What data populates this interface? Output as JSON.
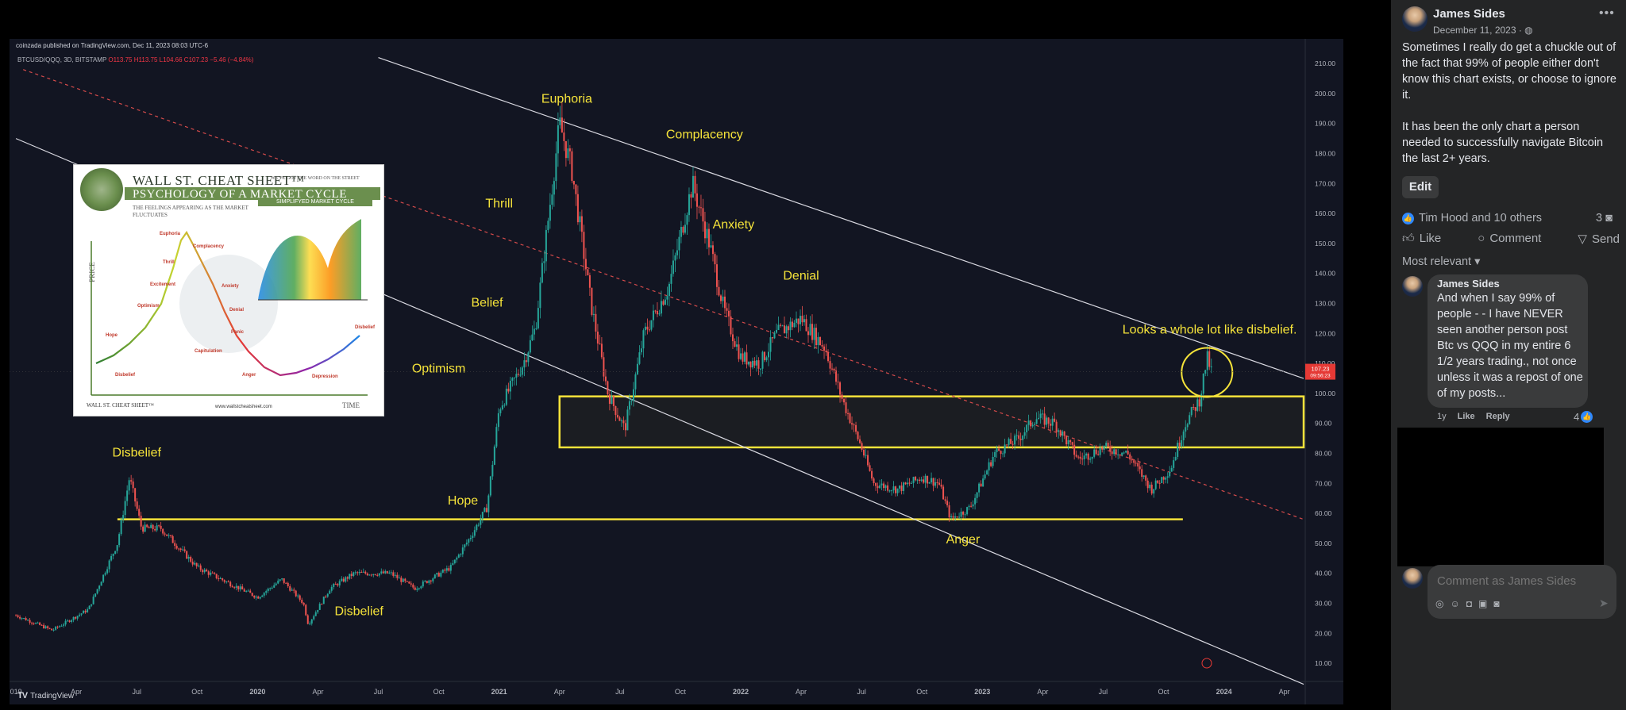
{
  "chart_window": {
    "published_line": "coinzada published on TradingView.com, Dec 11, 2023 08:03 UTC-6",
    "symbol": "BTCUSD/QQQ, 3D, BITSTAMP",
    "ohlc": {
      "open": "O113.75",
      "high": "H113.75",
      "low": "L104.66",
      "close": "C107.23",
      "change": "−5.46 (−4.84%)"
    },
    "price_tag": "107.23",
    "price_tag_time": "09:56:23",
    "footer_brand": "TradingView"
  },
  "chart_data": {
    "type": "candlestick",
    "y_ticks": [
      "210.00",
      "200.00",
      "190.00",
      "180.00",
      "170.00",
      "160.00",
      "150.00",
      "140.00",
      "130.00",
      "120.00",
      "110.00",
      "100.00",
      "90.00",
      "80.00",
      "70.00",
      "60.00",
      "50.00",
      "40.00",
      "30.00",
      "20.00",
      "10.00"
    ],
    "ylim": [
      5,
      214
    ],
    "x_ticks": [
      "019",
      "Apr",
      "Jul",
      "Oct",
      "2020",
      "Apr",
      "Jul",
      "Oct",
      "2021",
      "Apr",
      "Jul",
      "Oct",
      "2022",
      "Apr",
      "Jul",
      "Oct",
      "2023",
      "Apr",
      "Jul",
      "Oct",
      "2024",
      "Apr"
    ],
    "x_tick_years": [
      2019.0,
      2019.25,
      2019.5,
      2019.75,
      2020.0,
      2020.25,
      2020.5,
      2020.75,
      2021.0,
      2021.25,
      2021.5,
      2021.75,
      2022.0,
      2022.25,
      2022.5,
      2022.75,
      2023.0,
      2023.25,
      2023.5,
      2023.75,
      2024.0,
      2024.25
    ],
    "xlim": [
      2018.98,
      2024.33
    ],
    "price_path": [
      [
        2019.0,
        26
      ],
      [
        2019.15,
        21
      ],
      [
        2019.3,
        28
      ],
      [
        2019.42,
        50
      ],
      [
        2019.47,
        72
      ],
      [
        2019.52,
        55
      ],
      [
        2019.6,
        55
      ],
      [
        2019.75,
        42
      ],
      [
        2019.9,
        36
      ],
      [
        2020.0,
        32
      ],
      [
        2020.1,
        38
      ],
      [
        2020.19,
        30
      ],
      [
        2020.21,
        23
      ],
      [
        2020.3,
        35
      ],
      [
        2020.4,
        40
      ],
      [
        2020.55,
        40
      ],
      [
        2020.65,
        35
      ],
      [
        2020.8,
        42
      ],
      [
        2020.88,
        52
      ],
      [
        2020.95,
        62
      ],
      [
        2021.0,
        95
      ],
      [
        2021.1,
        110
      ],
      [
        2021.15,
        122
      ],
      [
        2021.25,
        190
      ],
      [
        2021.3,
        175
      ],
      [
        2021.38,
        130
      ],
      [
        2021.45,
        100
      ],
      [
        2021.52,
        88
      ],
      [
        2021.6,
        120
      ],
      [
        2021.7,
        135
      ],
      [
        2021.8,
        170
      ],
      [
        2021.87,
        150
      ],
      [
        2021.93,
        128
      ],
      [
        2022.0,
        112
      ],
      [
        2022.08,
        110
      ],
      [
        2022.15,
        120
      ],
      [
        2022.25,
        125
      ],
      [
        2022.35,
        115
      ],
      [
        2022.42,
        98
      ],
      [
        2022.5,
        82
      ],
      [
        2022.55,
        70
      ],
      [
        2022.65,
        68
      ],
      [
        2022.75,
        72
      ],
      [
        2022.82,
        70
      ],
      [
        2022.87,
        58
      ],
      [
        2022.95,
        62
      ],
      [
        2023.05,
        80
      ],
      [
        2023.15,
        85
      ],
      [
        2023.22,
        92
      ],
      [
        2023.3,
        90
      ],
      [
        2023.4,
        78
      ],
      [
        2023.5,
        82
      ],
      [
        2023.6,
        80
      ],
      [
        2023.7,
        68
      ],
      [
        2023.78,
        75
      ],
      [
        2023.84,
        90
      ],
      [
        2023.9,
        98
      ],
      [
        2023.93,
        112
      ],
      [
        2023.95,
        107
      ]
    ],
    "annotations": [
      {
        "text": "Euphoria",
        "x": 2021.28,
        "y": 197
      },
      {
        "text": "Complacency",
        "x": 2021.85,
        "y": 185
      },
      {
        "text": "Thrill",
        "x": 2021.0,
        "y": 162
      },
      {
        "text": "Anxiety",
        "x": 2021.97,
        "y": 155
      },
      {
        "text": "Denial",
        "x": 2022.25,
        "y": 138
      },
      {
        "text": "Belief",
        "x": 2020.95,
        "y": 129
      },
      {
        "text": "Looks a whole lot like disbelief.",
        "x": 2023.58,
        "y": 120
      },
      {
        "text": "Optimism",
        "x": 2020.75,
        "y": 107
      },
      {
        "text": "Disbelief",
        "x": 2019.5,
        "y": 79
      },
      {
        "text": "Hope",
        "x": 2020.85,
        "y": 63
      },
      {
        "text": "Anger",
        "x": 2022.92,
        "y": 50
      },
      {
        "text": "Disbelief",
        "x": 2020.42,
        "y": 26
      }
    ],
    "trendlines": [
      {
        "style": "solid-white",
        "points": [
          [
            2020.5,
            212
          ],
          [
            2024.33,
            105
          ]
        ]
      },
      {
        "style": "solid-white",
        "points": [
          [
            2019.0,
            185
          ],
          [
            2024.33,
            3
          ]
        ]
      },
      {
        "style": "dashed-red",
        "points": [
          [
            2019.03,
            208
          ],
          [
            2024.33,
            58
          ]
        ]
      }
    ],
    "zones": [
      {
        "type": "rect",
        "x0": 2021.25,
        "x1": 2024.33,
        "y0": 82,
        "y1": 99
      },
      {
        "type": "hline",
        "x0": 2019.42,
        "x1": 2023.83,
        "y": 58
      }
    ]
  },
  "inset": {
    "title1": "WALL ST. CHEAT SHEET™",
    "tagline": "WE'VE GOT THE WORD ON THE STREET",
    "title2": "PSYCHOLOGY OF A MARKET CYCLE",
    "subtitle": "THE FEELINGS APPEARING AS THE MARKET FLUCTUATES",
    "badge": "SIMPLIFYED MARKET CYCLE",
    "price_axis": "PRICE",
    "time_axis": "TIME",
    "footer": "WALL ST. CHEAT SHEET™",
    "url": "www.wallstcheatsheet.com",
    "labels": {
      "euphoria": "Euphoria",
      "complacency": "Complacency",
      "thrill": "Thrill",
      "anxiety": "Anxiety",
      "excitement": "Excitement",
      "denial": "Denial",
      "optimism": "Optimism",
      "panic": "Panic",
      "hope": "Hope",
      "capitulation": "Capitulation",
      "disbelief_left": "Disbelief",
      "disbelief_right": "Disbelief",
      "anger": "Anger",
      "depression": "Depression"
    }
  },
  "post": {
    "author": "James Sides",
    "date": "December 11, 2023 · ◍",
    "paragraph1": "Sometimes I really do get a chuckle out of the fact that 99% of people either don't know this chart exists, or choose to ignore it.",
    "paragraph2": "It has been the only chart a person needed to successfully navigate Bitcoin the last 2+ years.",
    "edit_label": "Edit",
    "reactions_text": "Tim Hood and 10 others",
    "comment_count": "3",
    "actions": {
      "like": "Like",
      "comment": "Comment",
      "send": "Send"
    },
    "sort_label": "Most relevant ▾"
  },
  "comment": {
    "author": "James Sides",
    "text": "And when I say 99% of people - - I have NEVER seen another person post Btc vs QQQ in my entire 6 1/2 years trading., not once unless it was a repost of one of my posts...",
    "age": "1y",
    "like": "Like",
    "reply": "Reply",
    "likes": "4"
  },
  "composer": {
    "placeholder": "Comment as James Sides"
  },
  "colors": {
    "chart_bg": "#121522",
    "up": "#26a69a",
    "down": "#ef5350",
    "annotation": "#f5e33a",
    "fb_panel": "#242526",
    "fb_blue": "#2e89ff"
  }
}
